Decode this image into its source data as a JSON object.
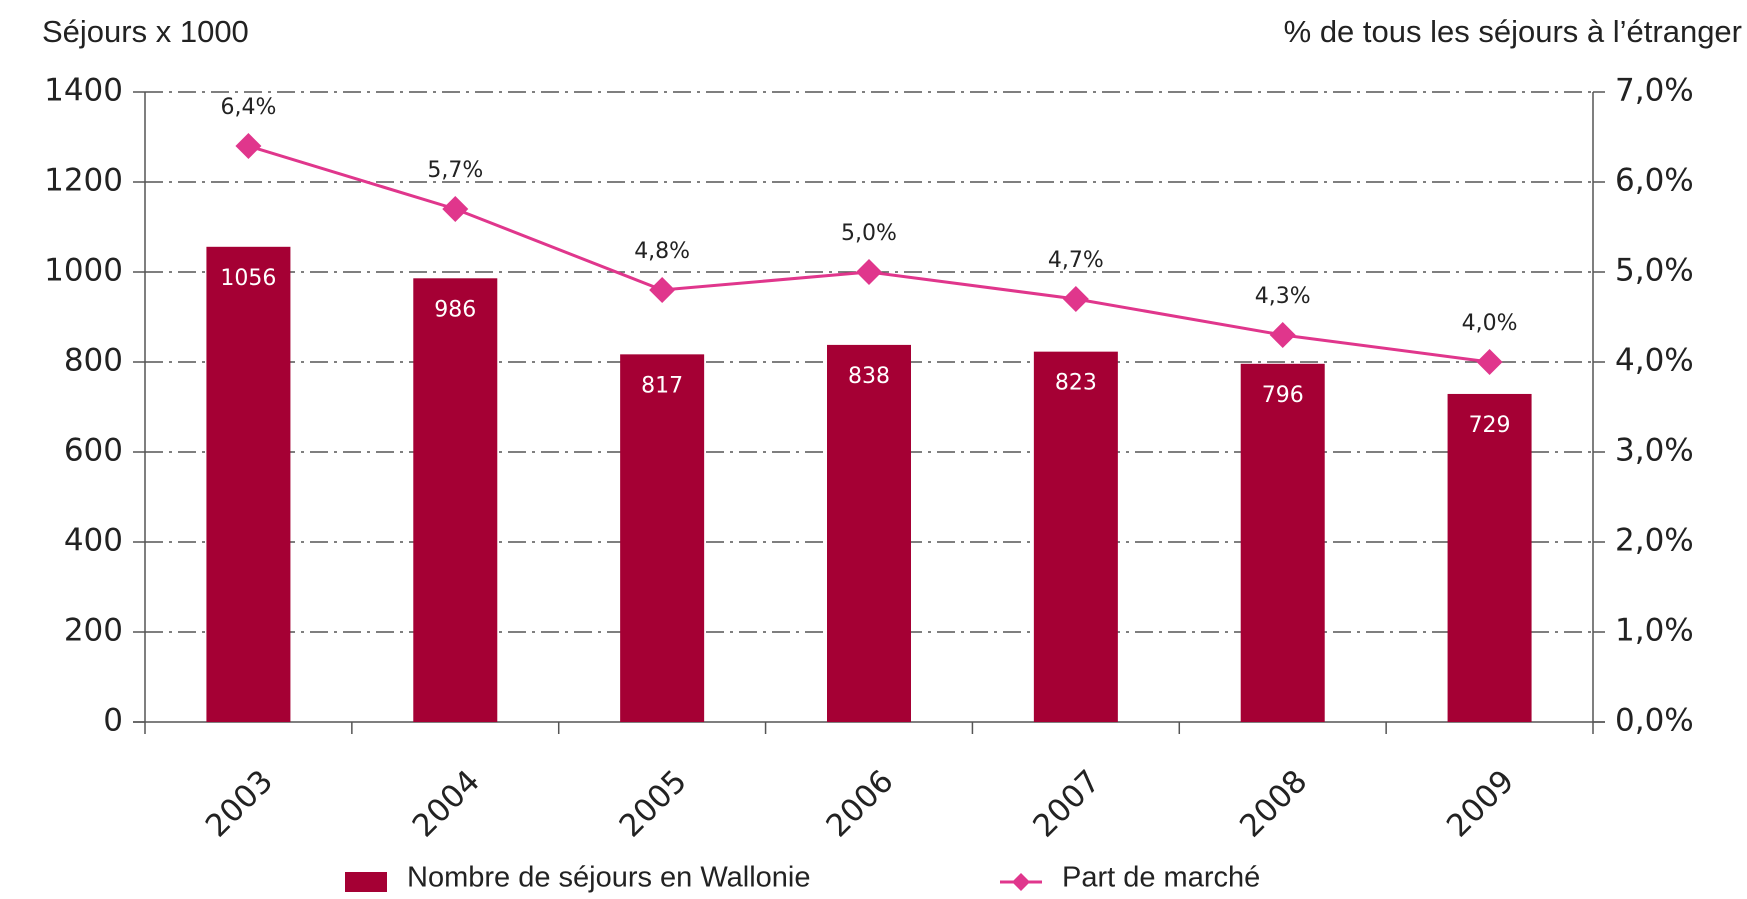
{
  "chart_data": {
    "type": "bar_line",
    "y_label": "Séjours x 1000",
    "y2_label": "% de tous les séjours à l’étranger",
    "categories": [
      "2003",
      "2004",
      "2005",
      "2006",
      "2007",
      "2008",
      "2009"
    ],
    "series": [
      {
        "name": "Nombre de séjours en Wallonie",
        "type": "bar",
        "color": "#a50034",
        "values": [
          1056,
          986,
          817,
          838,
          823,
          796,
          729
        ]
      },
      {
        "name": "Part de marché",
        "type": "line",
        "axis": "y2",
        "color": "#e0368c",
        "values": [
          6.4,
          5.7,
          4.8,
          5.0,
          4.7,
          4.3,
          4.0
        ],
        "value_labels": [
          "6,4%",
          "5,7%",
          "4,8%",
          "5,0%",
          "4,7%",
          "4,3%",
          "4,0%"
        ]
      }
    ],
    "ylim": [
      0,
      1400
    ],
    "yticks": [
      0,
      200,
      400,
      600,
      800,
      1000,
      1200,
      1400
    ],
    "y2lim": [
      0,
      7
    ],
    "y2ticks": [
      {
        "value": 0,
        "label": "0,0%"
      },
      {
        "value": 1,
        "label": "1,0%"
      },
      {
        "value": 2,
        "label": "2,0%"
      },
      {
        "value": 3,
        "label": "3,0%"
      },
      {
        "value": 4,
        "label": "4,0%"
      },
      {
        "value": 5,
        "label": "5,0%"
      },
      {
        "value": 6,
        "label": "6,0%"
      },
      {
        "value": 7,
        "label": "7,0%"
      }
    ],
    "grid": true,
    "legend": "bottom"
  }
}
